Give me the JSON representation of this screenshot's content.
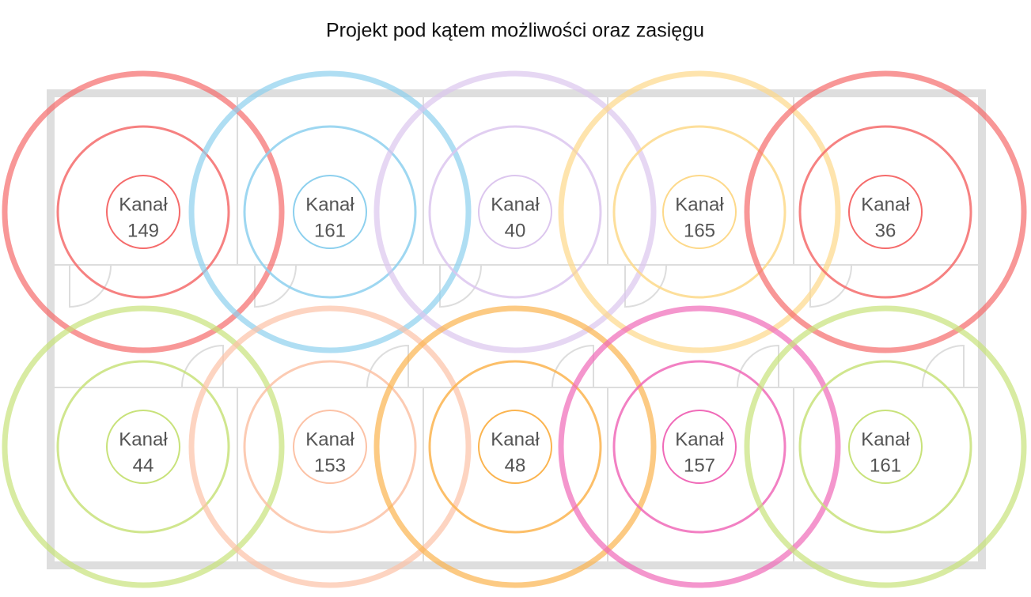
{
  "header": {
    "title": "Projekt pod kątem możliwości oraz zasięgu"
  },
  "nodes": [
    {
      "label": "Kanał",
      "channel": 149,
      "color": "#f56b6b"
    },
    {
      "label": "Kanał",
      "channel": 161,
      "color": "#8dd0ee"
    },
    {
      "label": "Kanał",
      "channel": 40,
      "color": "#dcc6ee"
    },
    {
      "label": "Kanał",
      "channel": 165,
      "color": "#fdd98a"
    },
    {
      "label": "Kanał",
      "channel": 36,
      "color": "#f56b6b"
    },
    {
      "label": "Kanał",
      "channel": 44,
      "color": "#c8e27a"
    },
    {
      "label": "Kanał",
      "channel": 153,
      "color": "#fcc2a6"
    },
    {
      "label": "Kanał",
      "channel": 48,
      "color": "#fbb44f"
    },
    {
      "label": "Kanał",
      "channel": 157,
      "color": "#f06ab8"
    },
    {
      "label": "Kanał",
      "channel": 161,
      "color": "#c8e27a"
    }
  ]
}
